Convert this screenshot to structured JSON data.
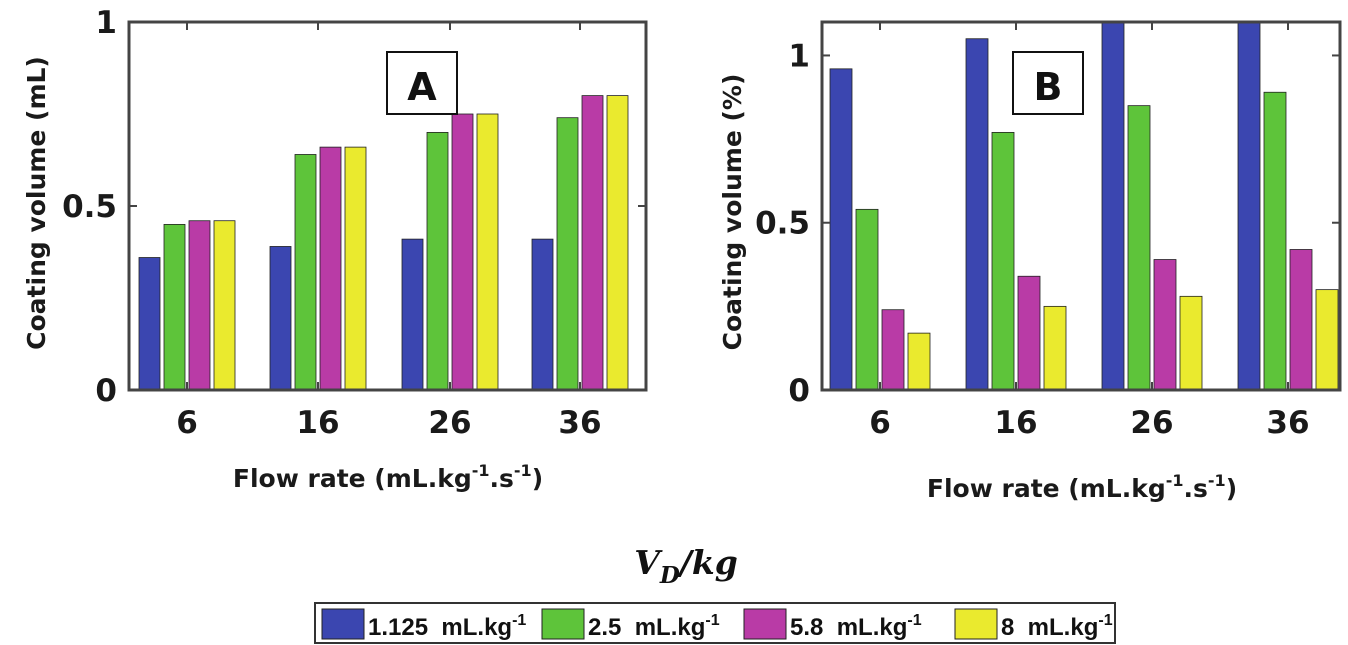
{
  "chart_data": [
    {
      "type": "bar",
      "panel_label": "A",
      "categories": [
        "6",
        "16",
        "26",
        "36"
      ],
      "series": [
        {
          "name": "1.125  mL.kg-1",
          "color": "#3b46b0",
          "values": [
            0.36,
            0.39,
            0.41,
            0.41
          ]
        },
        {
          "name": "2.5  mL.kg-1",
          "color": "#5ec43a",
          "values": [
            0.45,
            0.64,
            0.7,
            0.74
          ]
        },
        {
          "name": "5.8  mL.kg-1",
          "color": "#b93ba6",
          "values": [
            0.46,
            0.66,
            0.75,
            0.8
          ]
        },
        {
          "name": "8  mL.kg-1",
          "color": "#eaea2e",
          "values": [
            0.46,
            0.66,
            0.75,
            0.8
          ]
        }
      ],
      "ylabel": "Coating volume (mL)",
      "xlabel": "Flow rate (mL.kg-1.s-1)",
      "ylim": [
        0,
        1
      ],
      "yticks": [
        "0",
        "0.5",
        "1"
      ],
      "grid": false
    },
    {
      "type": "bar",
      "panel_label": "B",
      "categories": [
        "6",
        "16",
        "26",
        "36"
      ],
      "series": [
        {
          "name": "1.125  mL.kg-1",
          "color": "#3b46b0",
          "values": [
            0.96,
            1.05,
            1.1,
            1.1
          ]
        },
        {
          "name": "2.5  mL.kg-1",
          "color": "#5ec43a",
          "values": [
            0.54,
            0.77,
            0.85,
            0.89
          ]
        },
        {
          "name": "5.8  mL.kg-1",
          "color": "#b93ba6",
          "values": [
            0.24,
            0.34,
            0.39,
            0.42
          ]
        },
        {
          "name": "8  mL.kg-1",
          "color": "#eaea2e",
          "values": [
            0.17,
            0.25,
            0.28,
            0.3
          ]
        }
      ],
      "ylabel": "Coating volume (%)",
      "xlabel": "Flow rate (mL.kg-1.s-1)",
      "ylim": [
        0,
        1.1
      ],
      "yticks": [
        "0",
        "0.5",
        "1"
      ],
      "grid": false
    }
  ],
  "legend": {
    "title": "V_D/kg",
    "placement": "bottom",
    "items": [
      {
        "value": "1.125",
        "unit": "mL.kg",
        "exp": "-1",
        "color": "#3b46b0"
      },
      {
        "value": "2.5",
        "unit": "mL.kg",
        "exp": "-1",
        "color": "#5ec43a"
      },
      {
        "value": "5.8",
        "unit": "mL.kg",
        "exp": "-1",
        "color": "#b93ba6"
      },
      {
        "value": "8",
        "unit": "mL.kg",
        "exp": "-1",
        "color": "#eaea2e"
      }
    ]
  }
}
